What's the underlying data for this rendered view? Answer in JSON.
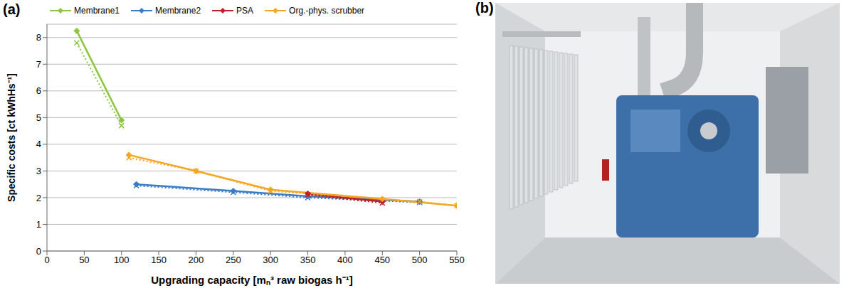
{
  "panel_labels": [
    "(a)",
    "(b)"
  ],
  "chart_data": {
    "type": "line",
    "x_label": "Upgrading capacity [mₙ³ raw biogas h⁻¹]",
    "y_label": "Specific costs [ct kWhHs⁻¹]",
    "xlim": [
      0,
      550
    ],
    "xticks": [
      0,
      50,
      100,
      150,
      200,
      250,
      300,
      350,
      400,
      450,
      500,
      550
    ],
    "ylim": [
      0,
      8.5
    ],
    "yticks": [
      0,
      1,
      2,
      3,
      4,
      5,
      6,
      7,
      8
    ],
    "grid": true,
    "legend": "top",
    "series": [
      {
        "name": "Membrane1",
        "color": "#8cc63f",
        "marker": "diamond",
        "line_style": "solid",
        "x": [
          40,
          100
        ],
        "values": [
          8.25,
          4.9
        ]
      },
      {
        "color": "#8cc63f",
        "marker": "x",
        "line_style": "dotted",
        "x": [
          40,
          100
        ],
        "values": [
          7.8,
          4.7
        ]
      },
      {
        "name": "Membrane2",
        "color": "#3b7dc4",
        "marker": "diamond",
        "line_style": "solid",
        "x": [
          120,
          250,
          350,
          500
        ],
        "values": [
          2.5,
          2.25,
          2.05,
          1.85
        ]
      },
      {
        "color": "#3b7dc4",
        "marker": "x",
        "line_style": "dotted",
        "x": [
          120,
          250,
          350,
          500
        ],
        "values": [
          2.45,
          2.2,
          2.0,
          1.82
        ]
      },
      {
        "name": "PSA",
        "color": "#c0202a",
        "marker": "diamond",
        "line_style": "solid",
        "x": [
          350,
          450
        ],
        "values": [
          2.15,
          1.85
        ]
      },
      {
        "color": "#c0202a",
        "marker": "x",
        "line_style": "dotted",
        "x": [
          350,
          450
        ],
        "values": [
          2.1,
          1.8
        ]
      },
      {
        "name": "Org.-phys. scrubber",
        "color": "#f5a623",
        "marker": "diamond",
        "line_style": "solid",
        "x": [
          110,
          200,
          300,
          450,
          550
        ],
        "values": [
          3.6,
          3.0,
          2.3,
          1.95,
          1.7
        ]
      },
      {
        "color": "#f5a623",
        "marker": "x",
        "line_style": "dotted",
        "x": [
          110,
          200,
          300,
          500,
          550
        ],
        "values": [
          3.5,
          3.0,
          2.25,
          1.85,
          1.7
        ]
      }
    ]
  }
}
